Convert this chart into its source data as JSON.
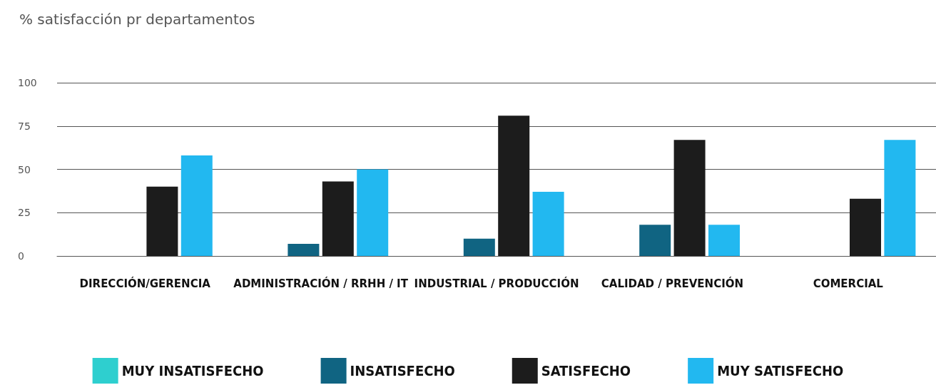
{
  "chart_data": {
    "type": "bar",
    "title": "% satisfacción pr departamentos",
    "categories": [
      "DIRECCIÓN/GERENCIA",
      "ADMINISTRACIÓN / RRHH / IT",
      "INDUSTRIAL / PRODUCCIÓN",
      "CALIDAD / PREVENCIÓN",
      "COMERCIAL"
    ],
    "series": [
      {
        "name": "MUY INSATISFECHO",
        "color": "#2ecfcf",
        "values": [
          0,
          0,
          0,
          0,
          0
        ]
      },
      {
        "name": "INSATISFECHO",
        "color": "#106482",
        "values": [
          0,
          7,
          10,
          18,
          0
        ]
      },
      {
        "name": "SATISFECHO",
        "color": "#1c1c1c",
        "values": [
          40,
          43,
          81,
          67,
          33
        ]
      },
      {
        "name": "MUY SATISFECHO",
        "color": "#22b8f0",
        "values": [
          58,
          50,
          37,
          18,
          67
        ]
      }
    ],
    "ylim": [
      0,
      100
    ],
    "yticks": [
      0,
      25,
      50,
      75,
      100
    ],
    "grid": "y",
    "legend": "bottom"
  }
}
